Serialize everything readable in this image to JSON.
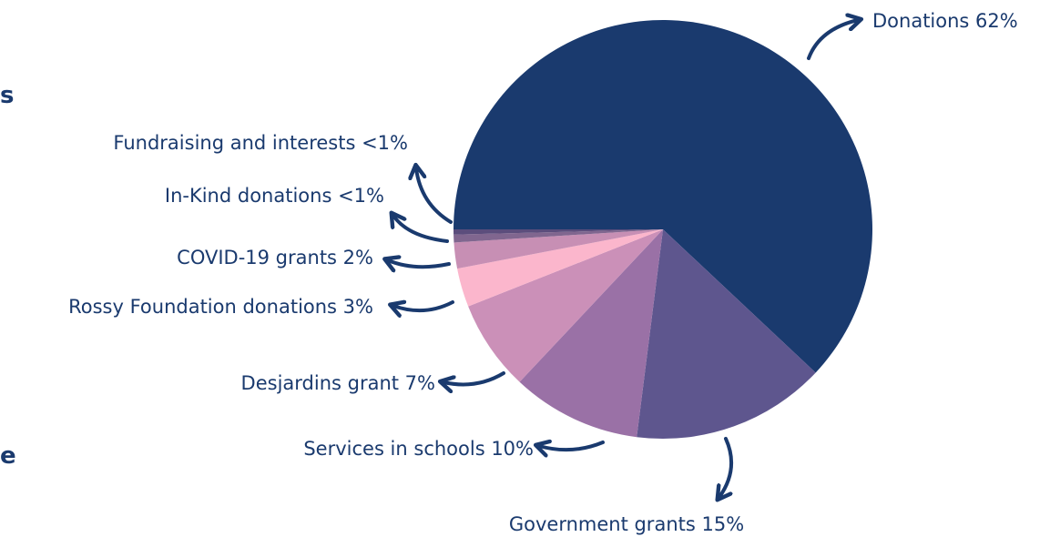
{
  "page": {
    "edge_fragment_top": "s",
    "edge_fragment_bottom": "e"
  },
  "chart_data": {
    "type": "pie",
    "title": "",
    "start_angle_deg": 180,
    "direction": "clockwise",
    "slices": [
      {
        "label": "Donations",
        "value": 62,
        "display": "62%",
        "color": "#1a3a6e"
      },
      {
        "label": "Government grants",
        "value": 15,
        "display": "15%",
        "color": "#5e568e"
      },
      {
        "label": "Services in schools",
        "value": 10,
        "display": "10%",
        "color": "#9a71a6"
      },
      {
        "label": "Desjardins grant",
        "value": 7,
        "display": "7%",
        "color": "#cb90b8"
      },
      {
        "label": "Rossy Foundation donations",
        "value": 3,
        "display": "3%",
        "color": "#fbb6cc"
      },
      {
        "label": "COVID-19 grants",
        "value": 2,
        "display": "2%",
        "color": "#c78fb4"
      },
      {
        "label": "In-Kind donations",
        "value": 0.6,
        "display": "<1%",
        "color": "#80668f"
      },
      {
        "label": "Fundraising and interests",
        "value": 0.4,
        "display": "<1%",
        "color": "#5b4d7c"
      }
    ],
    "label_color": "#1a3a6e",
    "arrow_color": "#1a3a6e"
  }
}
